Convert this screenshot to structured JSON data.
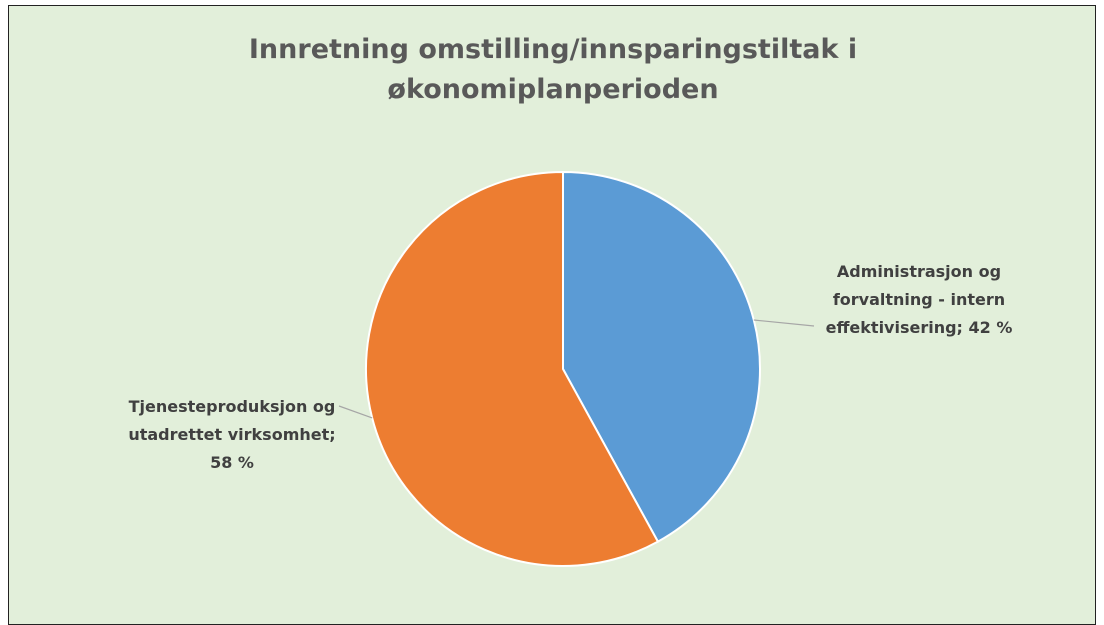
{
  "chart_data": {
    "type": "pie",
    "title": "Innretning omstilling/innsparingstiltak i økonomiplanperioden",
    "values": [
      42,
      58
    ],
    "value_labels": [
      "Administrasjon og forvaltning - intern effektivisering; 42 %",
      "Tjenesteproduksjon og utadrettet virksomhet; 58 %"
    ],
    "colors": [
      "#5b9bd5",
      "#ed7d31"
    ]
  }
}
